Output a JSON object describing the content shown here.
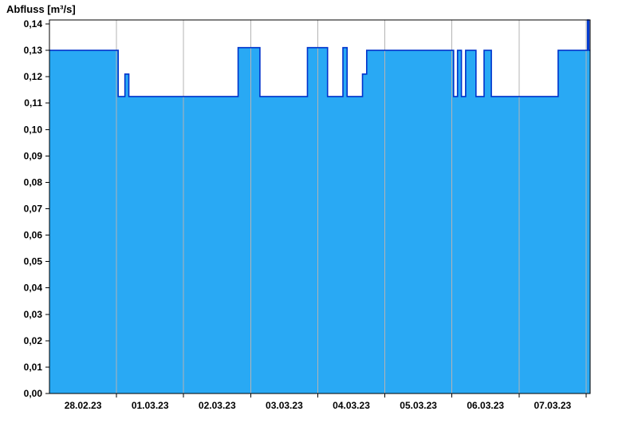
{
  "title": "Abfluss [m³/s]",
  "chart_data": {
    "type": "area",
    "title": "Abfluss [m³/s]",
    "ylabel": "Abfluss [m³/s]",
    "xlabel": "",
    "legend_position": "none",
    "grid": "vertical-day-gridlines",
    "x_axis": {
      "kind": "time",
      "unit": "hours-from-28.02.23-00:00",
      "domain_hours": [
        0,
        193.45
      ],
      "day_gridlines_hours": [
        24,
        48,
        72,
        96,
        120,
        144,
        168,
        192
      ],
      "label_center_hours": [
        12,
        36,
        60,
        84,
        108,
        132,
        156,
        180
      ],
      "labels": [
        "28.02.23",
        "01.03.23",
        "02.03.23",
        "03.03.23",
        "04.03.23",
        "05.03.23",
        "06.03.23",
        "07.03.23"
      ]
    },
    "y_axis": {
      "ylim": [
        0,
        0.1415
      ],
      "tick_values": [
        0.0,
        0.01,
        0.02,
        0.03,
        0.04,
        0.05,
        0.06,
        0.07,
        0.08,
        0.09,
        0.1,
        0.11,
        0.12,
        0.13,
        0.14
      ],
      "tick_labels": [
        "0,00",
        "0,01",
        "0,02",
        "0,03",
        "0,04",
        "0,05",
        "0,06",
        "0,07",
        "0,08",
        "0,09",
        "0,10",
        "0,11",
        "0,12",
        "0,13",
        "0,14"
      ]
    },
    "series": [
      {
        "name": "Abfluss",
        "interpolation": "step-after",
        "end_hour": 193.45,
        "step_points": [
          [
            0.0,
            0.13
          ],
          [
            24.6,
            0.1125
          ],
          [
            27.0,
            0.121
          ],
          [
            28.4,
            0.1125
          ],
          [
            67.5,
            0.131
          ],
          [
            75.3,
            0.1125
          ],
          [
            92.3,
            0.131
          ],
          [
            99.5,
            0.1125
          ],
          [
            105.0,
            0.131
          ],
          [
            106.5,
            0.1125
          ],
          [
            112.0,
            0.121
          ],
          [
            113.5,
            0.13
          ],
          [
            144.6,
            0.1125
          ],
          [
            146.0,
            0.13
          ],
          [
            147.4,
            0.1125
          ],
          [
            148.9,
            0.13
          ],
          [
            152.6,
            0.1125
          ],
          [
            155.5,
            0.13
          ],
          [
            158.1,
            0.1125
          ],
          [
            182.0,
            0.13
          ],
          [
            192.5,
            0.1415
          ],
          [
            193.0,
            0.13
          ]
        ]
      }
    ],
    "colors": {
      "fill": "#29a9f4",
      "stroke": "#0033cc",
      "grid": "#b4b4b4",
      "axis": "#000000",
      "background": "#ffffff"
    }
  }
}
